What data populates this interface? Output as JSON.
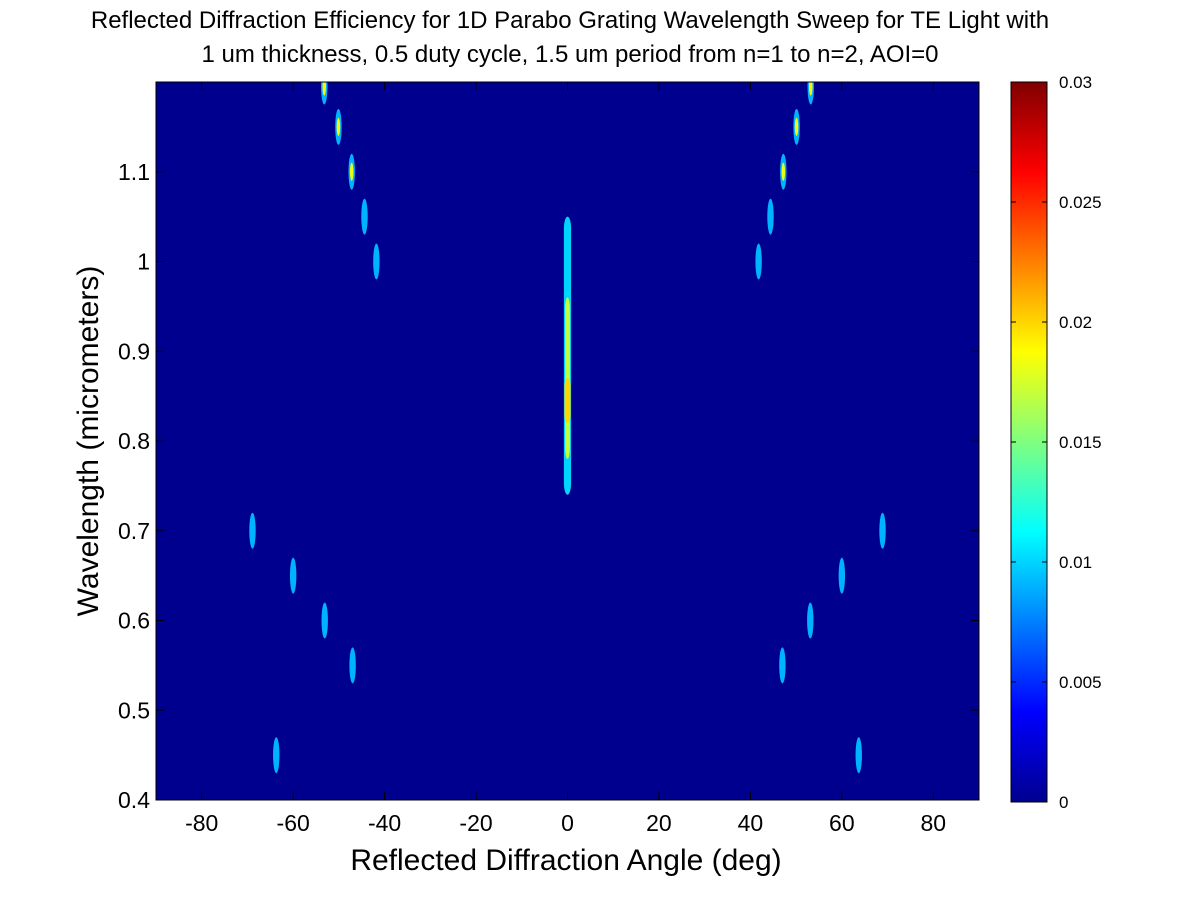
{
  "chart_data": {
    "type": "heatmap",
    "title": [
      "Reflected Diffraction Efficiency for 1D Parabo Grating Wavelength Sweep for TE Light with",
      "1 um thickness, 0.5 duty cycle, 1.5 um period from n=1 to n=2, AOI=0"
    ],
    "xlabel": "Reflected Diffraction Angle (deg)",
    "ylabel": "Wavelength (micrometers)",
    "xlim": [
      -90,
      90
    ],
    "ylim": [
      0.4,
      1.2
    ],
    "xticks": [
      -80,
      -60,
      -40,
      -20,
      0,
      20,
      40,
      60,
      80
    ],
    "xtick_labels": [
      "-80",
      "-60",
      "-40",
      "-20",
      "0",
      "20",
      "40",
      "60",
      "80"
    ],
    "yticks": [
      0.4,
      0.5,
      0.6,
      0.7,
      0.8,
      0.9,
      1.0,
      1.1
    ],
    "ytick_labels": [
      "0.4",
      "0.5",
      "0.6",
      "0.7",
      "0.8",
      "0.9",
      "1",
      "1.1"
    ],
    "colorbar": {
      "colormap": "jet",
      "range": [
        0,
        0.03
      ],
      "ticks": [
        0,
        0.005,
        0.01,
        0.015,
        0.02,
        0.025,
        0.03
      ],
      "tick_labels": [
        "0",
        "0.005",
        "0.01",
        "0.015",
        "0.02",
        "0.025",
        "0.03"
      ]
    },
    "background_value": 0,
    "grid": false,
    "spots": [
      {
        "x": -63.7,
        "y": 0.45,
        "value": 0.009
      },
      {
        "x": -47.0,
        "y": 0.55,
        "value": 0.009
      },
      {
        "x": -53.1,
        "y": 0.6,
        "value": 0.01
      },
      {
        "x": -60.0,
        "y": 0.65,
        "value": 0.009
      },
      {
        "x": -68.9,
        "y": 0.7,
        "value": 0.01
      },
      {
        "x": -41.8,
        "y": 1.0,
        "value": 0.01
      },
      {
        "x": -44.4,
        "y": 1.05,
        "value": 0.011
      },
      {
        "x": -47.2,
        "y": 1.1,
        "value": 0.018
      },
      {
        "x": -50.1,
        "y": 1.15,
        "value": 0.019
      },
      {
        "x": -53.2,
        "y": 1.195,
        "value": 0.019
      },
      {
        "x": 63.7,
        "y": 0.45,
        "value": 0.009
      },
      {
        "x": 47.0,
        "y": 0.55,
        "value": 0.009
      },
      {
        "x": 53.1,
        "y": 0.6,
        "value": 0.01
      },
      {
        "x": 60.0,
        "y": 0.65,
        "value": 0.009
      },
      {
        "x": 68.9,
        "y": 0.7,
        "value": 0.01
      },
      {
        "x": 41.8,
        "y": 1.0,
        "value": 0.01
      },
      {
        "x": 44.4,
        "y": 1.05,
        "value": 0.011
      },
      {
        "x": 47.2,
        "y": 1.1,
        "value": 0.018
      },
      {
        "x": 50.1,
        "y": 1.15,
        "value": 0.019
      },
      {
        "x": 53.2,
        "y": 1.195,
        "value": 0.019
      }
    ],
    "zero_order_band": [
      {
        "y_start": 0.74,
        "y_end": 1.05,
        "value": 0.01
      },
      {
        "y_start": 0.78,
        "y_end": 0.96,
        "value": 0.017
      },
      {
        "y_start": 0.82,
        "y_end": 0.87,
        "value": 0.02
      }
    ]
  }
}
